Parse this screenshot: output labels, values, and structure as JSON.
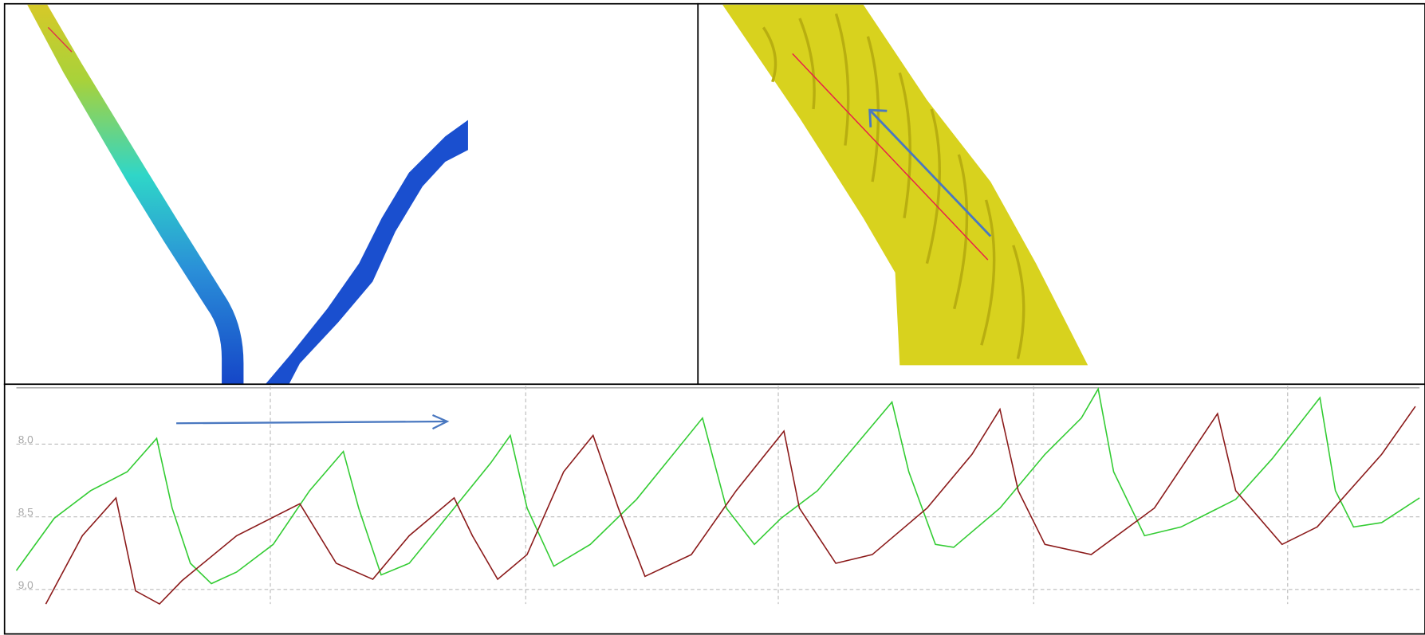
{
  "chart_data": {
    "type": "line",
    "xlim": [
      0,
      100
    ],
    "xticks": [
      18.1,
      36.3,
      54.3,
      72.5,
      90.6
    ],
    "ylim": [
      7.6,
      9.1
    ],
    "invert_y": true,
    "yticks": [
      {
        "value": 8.0,
        "label": "8.0"
      },
      8.5,
      {
        "value": 9.0,
        "label": "9.0"
      }
    ],
    "grid": true,
    "series": [
      {
        "color": "#33cc33",
        "x": [
          0,
          2.7,
          5.3,
          7.9,
          10.0,
          11.1,
          12.4,
          13.9,
          15.7,
          18.3,
          20.9,
          23.3,
          24.4,
          26.0,
          28.0,
          31.2,
          33.8,
          35.2,
          36.4,
          38.3,
          40.9,
          44.2,
          46.8,
          48.9,
          50.6,
          52.6,
          54.5,
          57.1,
          60.4,
          62.4,
          63.6,
          65.5,
          66.8,
          70.1,
          73.3,
          75.9,
          77.1,
          78.2,
          80.4,
          83.0,
          86.9,
          89.5,
          92.9,
          94.0,
          95.3,
          97.3,
          100
        ],
        "values": [
          8.87,
          8.51,
          8.32,
          8.19,
          7.96,
          8.44,
          8.82,
          8.96,
          8.88,
          8.69,
          8.32,
          8.05,
          8.44,
          8.9,
          8.82,
          8.44,
          8.13,
          7.94,
          8.44,
          8.84,
          8.69,
          8.38,
          8.07,
          7.82,
          8.44,
          8.69,
          8.51,
          8.32,
          7.94,
          7.71,
          8.19,
          8.69,
          8.71,
          8.44,
          8.07,
          7.82,
          7.62,
          8.19,
          8.63,
          8.57,
          8.38,
          8.1,
          7.68,
          8.32,
          8.57,
          8.54,
          8.37
        ]
      },
      {
        "color": "#8b1a1a",
        "x": [
          2.1,
          4.7,
          7.1,
          8.5,
          10.2,
          11.8,
          15.7,
          20.2,
          22.8,
          25.4,
          28.0,
          31.2,
          32.5,
          34.3,
          36.4,
          39.0,
          41.1,
          42.9,
          44.8,
          48.1,
          51.3,
          54.7,
          55.8,
          58.4,
          61.0,
          64.9,
          68.1,
          70.1,
          71.4,
          73.3,
          76.6,
          81.1,
          85.6,
          86.9,
          90.2,
          92.7,
          97.3,
          99.7
        ],
        "values": [
          9.1,
          8.63,
          8.37,
          9.01,
          9.1,
          8.94,
          8.63,
          8.41,
          8.82,
          8.93,
          8.63,
          8.37,
          8.63,
          8.93,
          8.76,
          8.19,
          7.94,
          8.44,
          8.91,
          8.76,
          8.32,
          7.91,
          8.44,
          8.82,
          8.76,
          8.44,
          8.07,
          7.76,
          8.32,
          8.69,
          8.76,
          8.44,
          7.79,
          8.32,
          8.69,
          8.57,
          8.07,
          7.74
        ]
      }
    ]
  }
}
